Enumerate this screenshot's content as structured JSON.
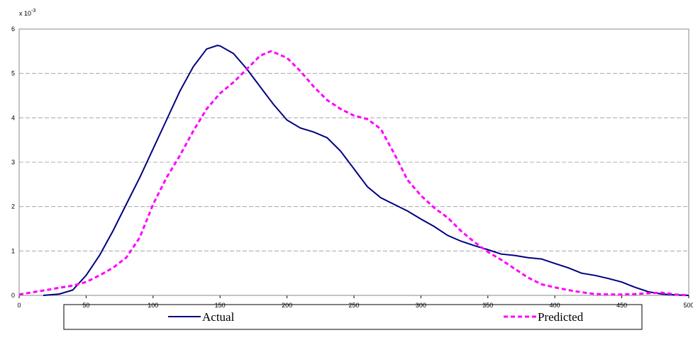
{
  "chart_data": {
    "type": "line",
    "multiplier": "x 10",
    "multiplier_exponent": "-3",
    "xlim": [
      0,
      500
    ],
    "xticks": [
      0,
      50,
      100,
      150,
      200,
      250,
      300,
      350,
      400,
      450,
      500
    ],
    "ylim": [
      0,
      6
    ],
    "yticks": [
      0,
      1,
      2,
      3,
      4,
      5,
      6
    ],
    "grid": true,
    "series": [
      {
        "name": "Actual",
        "color": "#000080",
        "dash": false,
        "x": [
          18,
          30,
          40,
          50,
          60,
          70,
          80,
          90,
          100,
          110,
          120,
          130,
          140,
          148,
          150,
          160,
          170,
          180,
          190,
          200,
          210,
          220,
          230,
          240,
          250,
          260,
          270,
          280,
          290,
          300,
          310,
          320,
          330,
          340,
          350,
          360,
          370,
          380,
          390,
          400,
          410,
          420,
          430,
          440,
          450,
          460,
          470,
          480,
          490,
          500
        ],
        "values": [
          0,
          0.03,
          0.12,
          0.45,
          0.9,
          1.45,
          2.05,
          2.65,
          3.3,
          3.95,
          4.6,
          5.15,
          5.55,
          5.63,
          5.62,
          5.45,
          5.1,
          4.7,
          4.3,
          3.95,
          3.77,
          3.68,
          3.55,
          3.25,
          2.85,
          2.45,
          2.2,
          2.05,
          1.9,
          1.72,
          1.55,
          1.35,
          1.22,
          1.12,
          1.03,
          0.93,
          0.9,
          0.85,
          0.82,
          0.72,
          0.62,
          0.5,
          0.45,
          0.38,
          0.3,
          0.18,
          0.08,
          0.03,
          0.01,
          0
        ]
      },
      {
        "name": "Predicted",
        "color": "#ff00ff",
        "dash": true,
        "x": [
          0,
          10,
          20,
          30,
          40,
          50,
          60,
          70,
          80,
          90,
          100,
          110,
          120,
          130,
          140,
          150,
          160,
          170,
          180,
          188,
          190,
          200,
          210,
          220,
          230,
          240,
          250,
          260,
          270,
          280,
          290,
          300,
          310,
          320,
          330,
          340,
          350,
          360,
          370,
          380,
          390,
          400,
          410,
          420,
          430,
          440,
          450,
          460,
          470,
          480,
          490,
          500
        ],
        "values": [
          0.02,
          0.07,
          0.12,
          0.17,
          0.22,
          0.3,
          0.45,
          0.62,
          0.85,
          1.3,
          2.05,
          2.65,
          3.15,
          3.7,
          4.2,
          4.55,
          4.8,
          5.1,
          5.4,
          5.5,
          5.48,
          5.35,
          5.05,
          4.7,
          4.4,
          4.2,
          4.05,
          3.97,
          3.75,
          3.2,
          2.6,
          2.25,
          1.97,
          1.75,
          1.45,
          1.2,
          0.98,
          0.8,
          0.6,
          0.4,
          0.25,
          0.18,
          0.12,
          0.07,
          0.03,
          0.02,
          0.02,
          0.03,
          0.05,
          0.06,
          0.02,
          0
        ]
      }
    ]
  }
}
